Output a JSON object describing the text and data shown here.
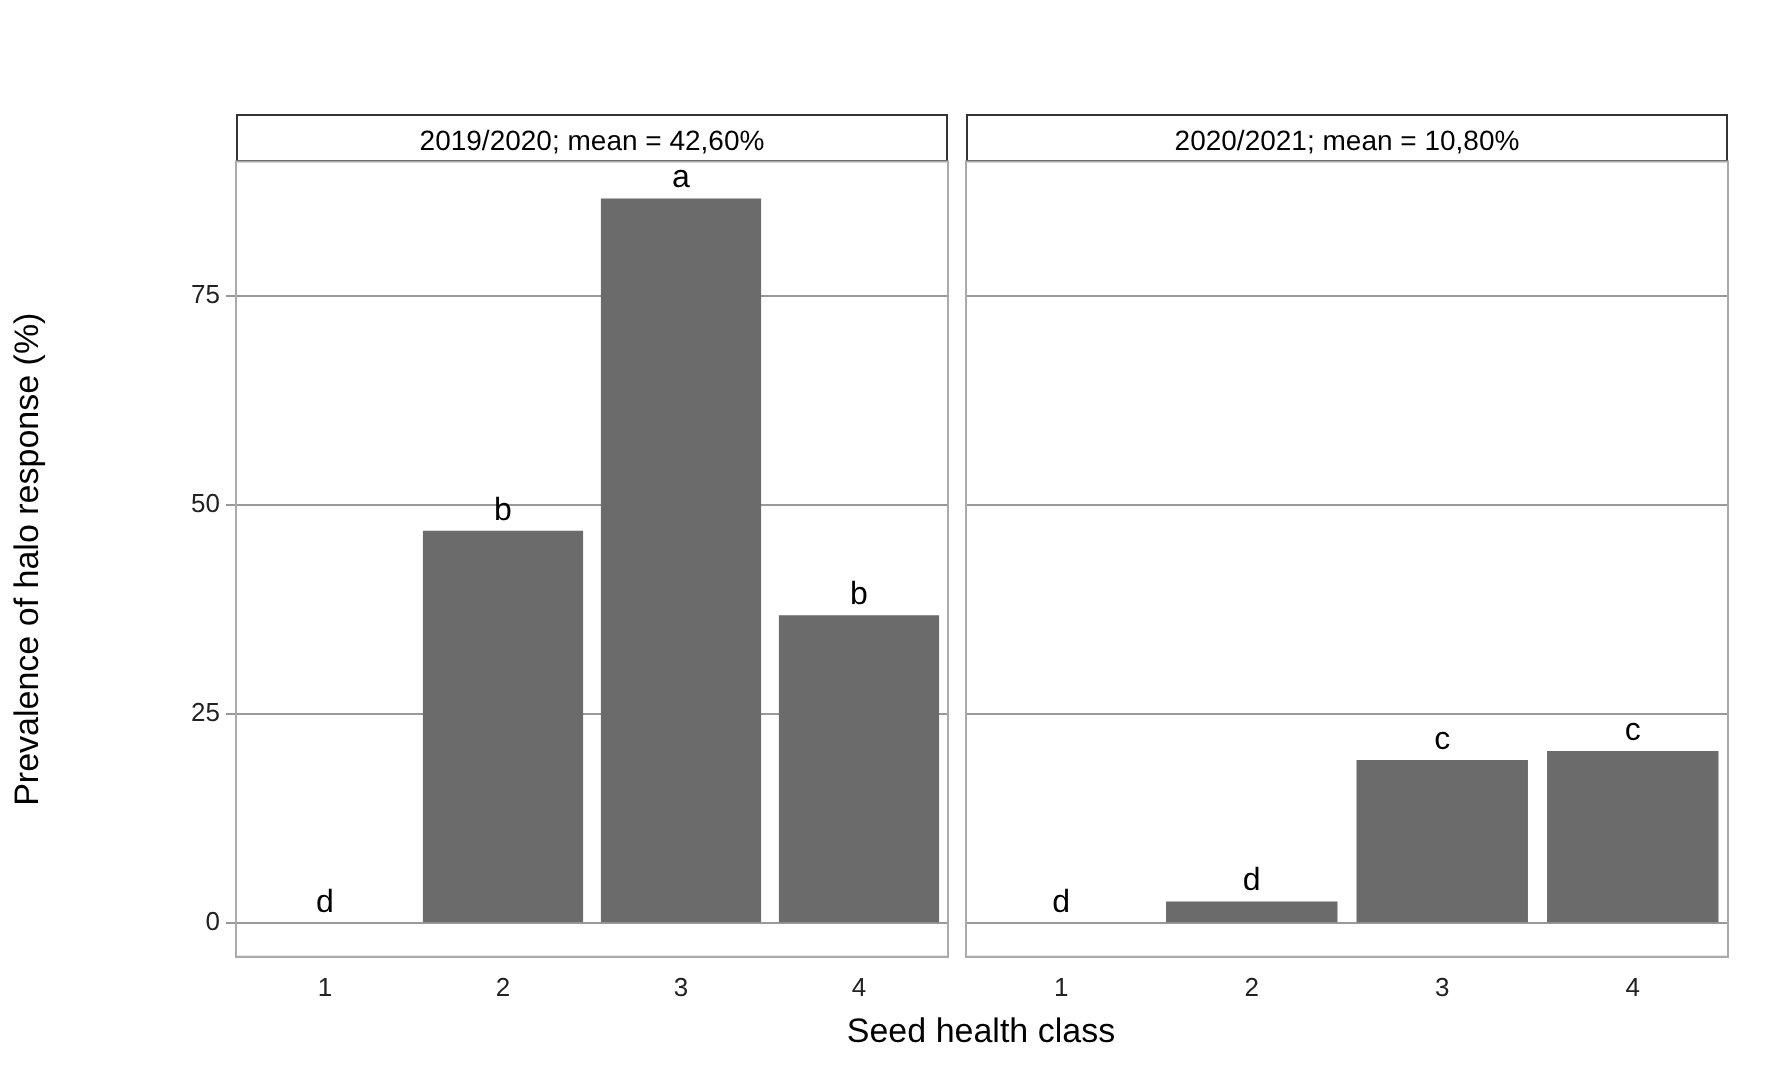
{
  "chart_data": [
    {
      "type": "bar",
      "title": "2019/2020; mean = 42,60%",
      "ylabel": "Prevalence of halo response (%)",
      "xlabel": "Seed health class",
      "categories": [
        "1",
        "2",
        "3",
        "4"
      ],
      "series": [
        {
          "color": "#6b6b6b",
          "values": [
            0,
            46.9,
            86.6,
            36.8
          ],
          "value_labels": [
            "d",
            "b",
            "a",
            "b"
          ]
        }
      ],
      "ylim": [
        -4,
        91
      ],
      "yticks": [
        0,
        25,
        50,
        75
      ],
      "grid": "y",
      "legend": false
    },
    {
      "type": "bar",
      "title": "2020/2021; mean = 10,80%",
      "categories": [
        "1",
        "2",
        "3",
        "4"
      ],
      "series": [
        {
          "color": "#6b6b6b",
          "values": [
            0,
            2.6,
            19.5,
            20.6
          ],
          "value_labels": [
            "d",
            "d",
            "c",
            "c"
          ]
        }
      ],
      "ylim": [
        -4,
        91
      ],
      "yticks": [
        0,
        25,
        50,
        75
      ],
      "grid": "y",
      "legend": false,
      "tick_labels": "x"
    }
  ]
}
